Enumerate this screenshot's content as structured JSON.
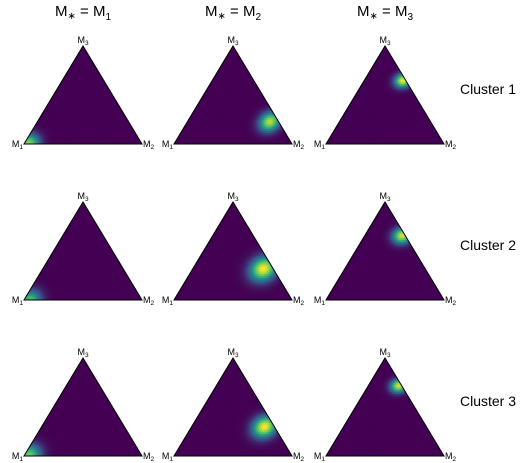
{
  "chart_data": {
    "type": "heatmap",
    "title": "",
    "column_titles": [
      {
        "base": "M",
        "op": " = ",
        "rhs": "M",
        "sub": "1"
      },
      {
        "base": "M",
        "op": " = ",
        "rhs": "M",
        "sub": "2"
      },
      {
        "base": "M",
        "op": " = ",
        "rhs": "M",
        "sub": "3"
      }
    ],
    "row_labels": [
      "Cluster 1",
      "Cluster 2",
      "Cluster 3"
    ],
    "vertex_labels": {
      "top": {
        "base": "M",
        "sub": "3"
      },
      "left": {
        "base": "M",
        "sub": "1"
      },
      "right": {
        "base": "M",
        "sub": "2"
      }
    },
    "colormap": {
      "name": "viridis",
      "stops": [
        "#440154",
        "#3b528b",
        "#21918c",
        "#5ec962",
        "#fde725"
      ]
    },
    "panels": [
      {
        "row": 0,
        "col": 0,
        "mode": [
          0.96,
          0.04,
          0.0
        ],
        "spread": 0.09,
        "elong": 3.2,
        "dir": [
          0.55,
          0.25,
          0.2
        ],
        "peak": 0.85
      },
      {
        "row": 0,
        "col": 1,
        "mode": [
          0.07,
          0.7,
          0.23
        ],
        "spread": 0.08,
        "elong": 2.6,
        "dir": [
          0.7,
          0.2,
          0.1
        ],
        "peak": 0.9
      },
      {
        "row": 0,
        "col": 2,
        "mode": [
          0.02,
          0.33,
          0.65
        ],
        "spread": 0.06,
        "elong": 3.0,
        "dir": [
          0.0,
          0.55,
          0.45
        ],
        "peak": 1.0
      },
      {
        "row": 1,
        "col": 0,
        "mode": [
          0.95,
          0.05,
          0.0
        ],
        "spread": 0.09,
        "elong": 3.0,
        "dir": [
          0.6,
          0.22,
          0.18
        ],
        "peak": 0.7
      },
      {
        "row": 1,
        "col": 1,
        "mode": [
          0.08,
          0.6,
          0.32
        ],
        "spread": 0.1,
        "elong": 2.2,
        "dir": [
          0.7,
          0.18,
          0.12
        ],
        "peak": 1.0
      },
      {
        "row": 1,
        "col": 2,
        "mode": [
          0.02,
          0.32,
          0.66
        ],
        "spread": 0.07,
        "elong": 3.0,
        "dir": [
          0.0,
          0.55,
          0.45
        ],
        "peak": 0.95
      },
      {
        "row": 2,
        "col": 0,
        "mode": [
          0.96,
          0.04,
          0.0
        ],
        "spread": 0.1,
        "elong": 3.2,
        "dir": [
          0.58,
          0.24,
          0.18
        ],
        "peak": 0.8
      },
      {
        "row": 2,
        "col": 1,
        "mode": [
          0.08,
          0.62,
          0.3
        ],
        "spread": 0.09,
        "elong": 2.4,
        "dir": [
          0.7,
          0.18,
          0.12
        ],
        "peak": 1.0
      },
      {
        "row": 2,
        "col": 2,
        "mode": [
          0.02,
          0.26,
          0.72
        ],
        "spread": 0.06,
        "elong": 3.0,
        "dir": [
          0.0,
          0.55,
          0.45
        ],
        "peak": 0.95
      }
    ]
  }
}
